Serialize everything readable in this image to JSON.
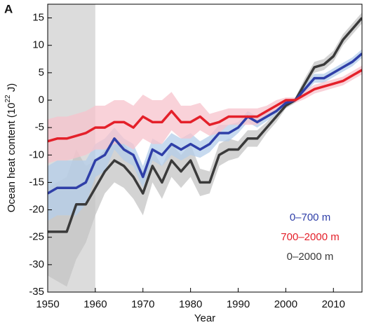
{
  "chart_data": {
    "type": "line",
    "panel_label": "A",
    "xlabel": "Year",
    "ylabel": "Ocean heat content (10",
    "ylabel_sup": "22",
    "ylabel_end": " J)",
    "x": [
      1950,
      1952,
      1954,
      1956,
      1958,
      1960,
      1962,
      1964,
      1966,
      1968,
      1970,
      1972,
      1974,
      1976,
      1978,
      1980,
      1982,
      1984,
      1986,
      1988,
      1990,
      1992,
      1994,
      1996,
      1998,
      2000,
      2002,
      2004,
      2006,
      2008,
      2010,
      2012,
      2014,
      2016
    ],
    "xlim": [
      1950,
      2016
    ],
    "xticks": [
      1950,
      1960,
      1970,
      1980,
      1990,
      2000,
      2010
    ],
    "ylim": [
      -35,
      17.5
    ],
    "yticks": [
      -35,
      -30,
      -25,
      -20,
      -15,
      -10,
      -5,
      0,
      5,
      10,
      15
    ],
    "shade": [
      1950,
      1960
    ],
    "shade_color": "#dcdcdc",
    "legend": "lower right",
    "series": [
      {
        "name": "0–2000 m",
        "color": "#3a3a3a",
        "band_color": "#c4c4c4",
        "values": [
          -24,
          -24,
          -24,
          -19,
          -19,
          -16,
          -13,
          -11,
          -12,
          -14,
          -17,
          -12,
          -15,
          -11,
          -13,
          -11,
          -15,
          -15,
          -10,
          -9,
          -9,
          -7,
          -7,
          -5,
          -3,
          -1,
          0,
          3,
          6,
          6.5,
          8,
          11,
          13,
          15
        ],
        "error": [
          8,
          9,
          10,
          10,
          7,
          5,
          4,
          4,
          4,
          4,
          4,
          3,
          3,
          3,
          3,
          3,
          2.5,
          2,
          2,
          2,
          1.5,
          1.5,
          1.5,
          1,
          1,
          0.5,
          0.5,
          1,
          1,
          1,
          1,
          1,
          1,
          1
        ]
      },
      {
        "name": "0–700 m",
        "color": "#2f3fa8",
        "band_color": "#b4cdea",
        "values": [
          -17,
          -16,
          -16,
          -16,
          -15,
          -11,
          -10,
          -7,
          -9,
          -10,
          -14,
          -9,
          -10,
          -8,
          -9,
          -8,
          -9,
          -8,
          -6,
          -6,
          -5,
          -3,
          -4,
          -3,
          -2,
          -0.5,
          0,
          2,
          4,
          4,
          5,
          6,
          7,
          8.5
        ],
        "error": [
          5,
          5,
          5,
          5,
          4,
          3,
          3,
          2,
          2,
          2,
          2,
          2,
          2,
          2,
          2,
          2,
          1.5,
          1.5,
          1.5,
          1.5,
          1,
          1,
          1,
          0.8,
          0.5,
          0.3,
          0.3,
          0.8,
          0.8,
          0.8,
          0.8,
          0.8,
          0.8,
          0.8
        ]
      },
      {
        "name": "700–2000 m",
        "color": "#e4202a",
        "band_color": "#f7c3cc",
        "values": [
          -7.5,
          -7,
          -7,
          -6.5,
          -6,
          -5,
          -5,
          -4,
          -4,
          -5,
          -3,
          -4,
          -4,
          -2,
          -4,
          -4,
          -3,
          -4.5,
          -4,
          -3,
          -3,
          -3,
          -3,
          -2,
          -1,
          0,
          0,
          1,
          2,
          2.5,
          3,
          3.5,
          4.5,
          5.5
        ],
        "error": [
          4,
          4,
          4,
          4,
          4,
          4,
          4,
          4,
          4,
          4,
          4,
          4,
          4,
          3.5,
          3,
          3,
          2.5,
          2,
          2,
          1.5,
          1.5,
          1.5,
          1.5,
          1,
          1,
          0.5,
          0.5,
          0.8,
          0.8,
          0.8,
          0.8,
          0.8,
          0.8,
          0.8
        ]
      }
    ]
  }
}
